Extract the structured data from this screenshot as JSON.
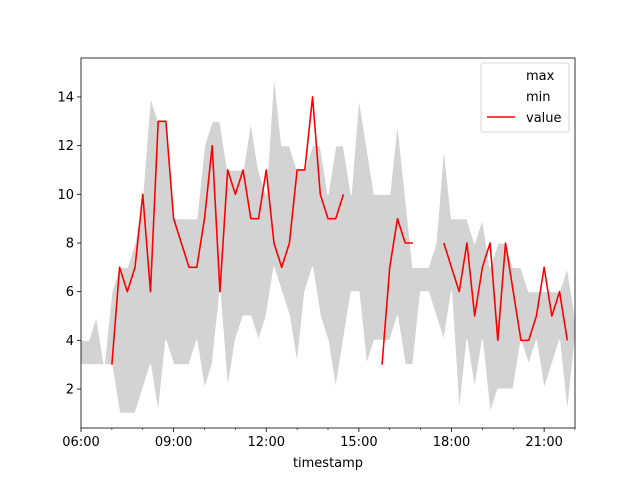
{
  "chart_data": {
    "type": "area",
    "xlabel": "timestamp",
    "ylabel": "",
    "x_ticks": [
      "06:00",
      "09:00",
      "12:00",
      "15:00",
      "18:00",
      "21:00"
    ],
    "x_tick_hours": [
      6,
      9,
      12,
      15,
      18,
      21
    ],
    "xlim_hours": [
      6,
      22
    ],
    "y_ticks": [
      2,
      4,
      6,
      8,
      10,
      12,
      14
    ],
    "ylim": [
      0.4,
      15.6
    ],
    "band_hours": [
      6,
      6.25,
      6.5,
      6.75,
      7,
      7.25,
      7.5,
      7.75,
      8,
      8.25,
      8.5,
      8.75,
      9,
      9.25,
      9.5,
      9.75,
      10,
      10.25,
      10.5,
      10.75,
      11,
      11.25,
      11.5,
      11.75,
      12,
      12.25,
      12.5,
      12.75,
      13,
      13.25,
      13.5,
      13.75,
      14,
      14.25,
      14.5,
      14.75,
      15,
      15.25,
      15.5,
      15.75,
      16,
      16.25,
      16.5,
      16.75,
      17,
      17.25,
      17.5,
      17.75,
      18,
      18.25,
      18.5,
      18.75,
      19,
      19.25,
      19.5,
      19.75,
      20,
      20.25,
      20.5,
      20.75,
      21,
      21.25,
      21.5,
      21.75,
      22
    ],
    "max": [
      4,
      4,
      5,
      3,
      6,
      7,
      7,
      8,
      10,
      14,
      13,
      13,
      9,
      9,
      9,
      9,
      12,
      13,
      13,
      11,
      11,
      11,
      13,
      11,
      10,
      15,
      12,
      12,
      11,
      11,
      12,
      12,
      10,
      12,
      12,
      10,
      14,
      12,
      10,
      10,
      10,
      13,
      10,
      7,
      7,
      7,
      8,
      12,
      9,
      9,
      9,
      8,
      9,
      7,
      8,
      8,
      7,
      7,
      6,
      6,
      6,
      6,
      6,
      7,
      5
    ],
    "min": [
      3,
      3,
      3,
      3,
      3,
      1,
      1,
      1,
      2,
      3,
      1,
      4,
      3,
      3,
      3,
      4,
      2,
      3,
      6,
      2,
      4,
      5,
      5,
      4,
      5,
      7,
      6,
      5,
      3,
      6,
      7,
      5,
      4,
      2,
      4,
      6,
      6,
      3,
      4,
      4,
      4,
      5,
      3,
      3,
      6,
      6,
      5,
      4,
      6,
      1,
      4,
      2,
      4,
      1,
      2,
      2,
      2,
      4,
      3,
      4,
      2,
      3,
      4,
      1,
      4
    ],
    "series": [
      {
        "name": "value",
        "color": "#ff0000",
        "segments": [
          {
            "hours": [
              7.0,
              7.25,
              7.5,
              7.75,
              8.0,
              8.25,
              8.5,
              8.75,
              9.0,
              9.25,
              9.5,
              9.75,
              10.0,
              10.25,
              10.5,
              10.75,
              11.0,
              11.25,
              11.5,
              11.75,
              12.0,
              12.25,
              12.5,
              12.75,
              13.0,
              13.25,
              13.5,
              13.75,
              14.0,
              14.25,
              14.5
            ],
            "values": [
              3,
              7,
              6,
              7,
              10,
              6,
              13,
              13,
              9,
              8,
              7,
              7,
              9,
              12,
              6,
              11,
              10,
              11,
              9,
              9,
              11,
              8,
              7,
              8,
              11,
              11,
              14,
              10,
              9,
              9,
              10
            ]
          },
          {
            "hours": [
              15.75,
              16.0,
              16.25,
              16.5,
              16.75
            ],
            "values": [
              3,
              7,
              9,
              8,
              8
            ]
          },
          {
            "hours": [
              17.75,
              18.0,
              18.25,
              18.5,
              18.75,
              19.0,
              19.25,
              19.5,
              19.75,
              20.0,
              20.25,
              20.5,
              20.75,
              21.0,
              21.25,
              21.5,
              21.75
            ],
            "values": [
              8,
              7,
              6,
              8,
              5,
              7,
              8,
              4,
              8,
              6,
              4,
              4,
              5,
              7,
              5,
              6,
              4
            ]
          }
        ]
      }
    ],
    "band_color": "#d3d3d3",
    "legend": {
      "placement": "top-right",
      "entries": [
        "max",
        "min",
        "value"
      ]
    }
  }
}
